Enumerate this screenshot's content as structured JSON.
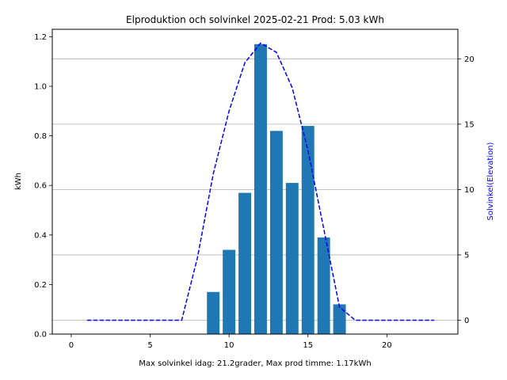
{
  "chart_data": {
    "type": "bar",
    "title": "Elproduktion och solvinkel 2025-02-21 Prod: 5.03 kWh",
    "xlabel": "Max solvinkel idag: 21.2grader, Max prod timme: 1.17kWh",
    "ylabel": "kWh",
    "y2label": "Solvinkel(Elevation)",
    "xlim": [
      -1.2,
      24.5
    ],
    "ylim": [
      0,
      1.23
    ],
    "y2lim": [
      -1.06,
      22.26
    ],
    "xticks": [
      0,
      5,
      10,
      15,
      20
    ],
    "yticks": [
      0.0,
      0.2,
      0.4,
      0.6,
      0.8,
      1.0,
      1.2
    ],
    "y2ticks": [
      0,
      5,
      10,
      15,
      20
    ],
    "grid": "right axis, horizontal",
    "bars": {
      "name": "kWh",
      "color": "#1f77b4",
      "width": 0.8,
      "x": [
        9,
        10,
        11,
        12,
        13,
        14,
        15,
        16,
        17
      ],
      "values": [
        0.17,
        0.34,
        0.57,
        1.17,
        0.82,
        0.61,
        0.84,
        0.39,
        0.12
      ]
    },
    "line": {
      "name": "Solvinkel",
      "color": "#0000ff",
      "style": "dashed",
      "axis": "right",
      "x": [
        1,
        2,
        3,
        4,
        5,
        6,
        7,
        8,
        9,
        10,
        11,
        12,
        13,
        14,
        15,
        16,
        17,
        18,
        19,
        20,
        21,
        22,
        23
      ],
      "values": [
        0,
        0,
        0,
        0,
        0,
        0,
        0,
        4.8,
        11.2,
        16.0,
        19.7,
        21.2,
        20.5,
        17.8,
        13.0,
        7.0,
        1.0,
        0,
        0,
        0,
        0,
        0,
        0
      ]
    }
  }
}
